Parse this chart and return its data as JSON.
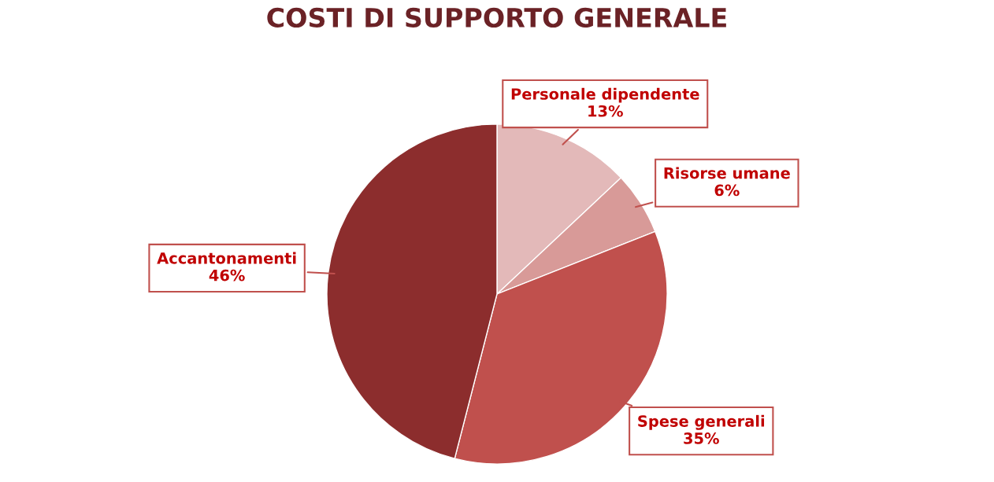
{
  "chart_data": {
    "type": "pie",
    "title": "COSTI DI SUPPORTO GENERALE",
    "categories": [
      "Personale dipendente",
      "Risorse umane",
      "Spese generali",
      "Accantonamenti"
    ],
    "values": [
      13,
      6,
      35,
      46
    ],
    "value_labels": [
      "13%",
      "6%",
      "35%",
      "46%"
    ],
    "colors": [
      "#e3b9b9",
      "#d89a98",
      "#c0504d",
      "#8c2d2d"
    ]
  }
}
